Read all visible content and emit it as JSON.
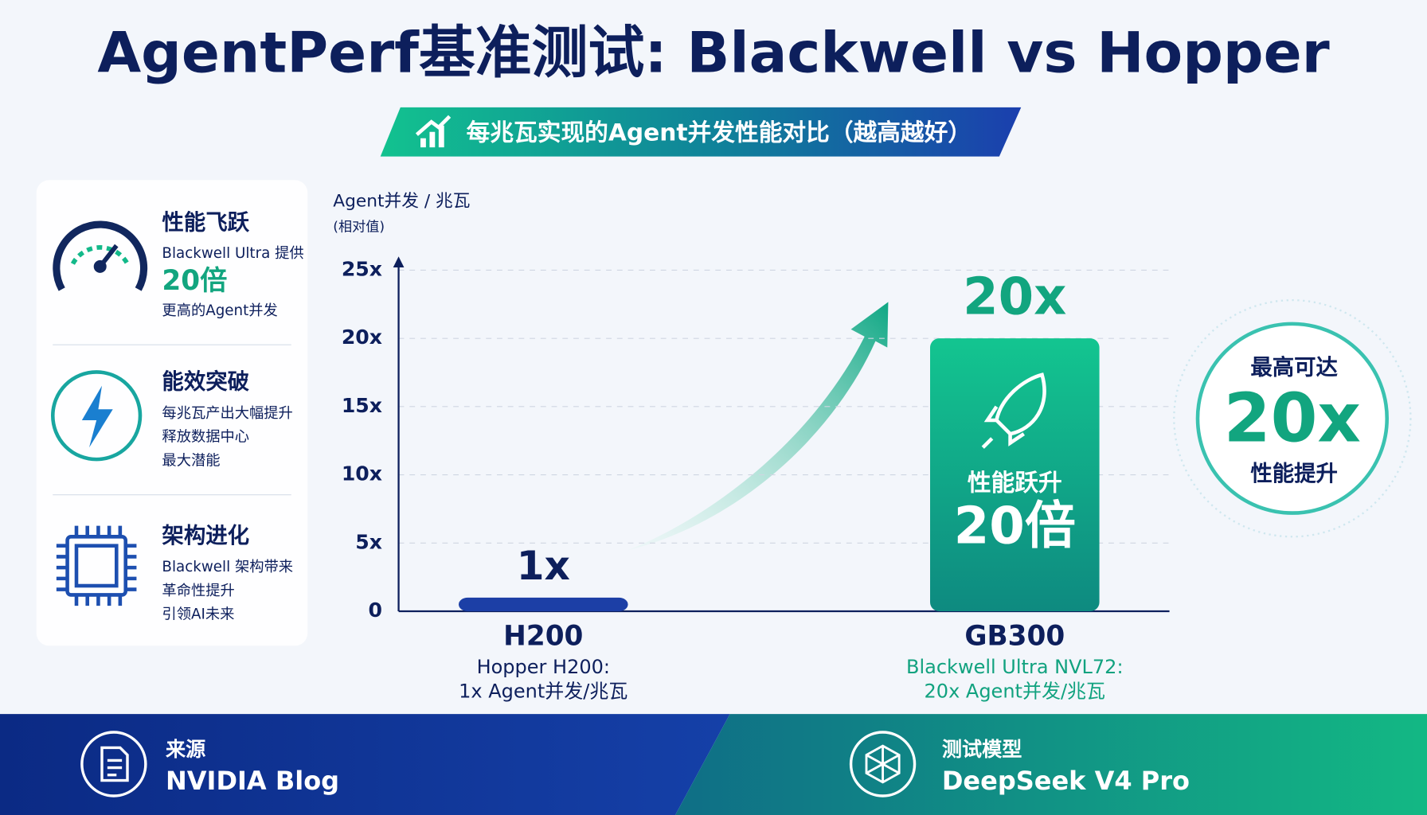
{
  "title": "AgentPerf基准测试: Blackwell vs Hopper",
  "subtitle": "每兆瓦实现的Agent并发性能对比（越高越好）",
  "sidebar": [
    {
      "title": "性能飞跃",
      "lines": [
        "Blackwell Ultra 提供",
        "20倍",
        "更高的Agent并发"
      ]
    },
    {
      "title": "能效突破",
      "lines": [
        "每兆瓦产出大幅提升",
        "释放数据中心",
        "最大潜能"
      ]
    },
    {
      "title": "架构进化",
      "lines": [
        "Blackwell 架构带来",
        "革命性提升",
        "引领AI未来"
      ]
    }
  ],
  "chart_data": {
    "type": "bar",
    "y_label": "Agent并发 / 兆瓦",
    "y_label_note": "(相对值)",
    "categories": [
      "H200",
      "GB300"
    ],
    "values": [
      1,
      20
    ],
    "value_labels": [
      "1x",
      "20x"
    ],
    "colors": [
      "#1c3fa6",
      "#13c590"
    ],
    "category_notes": [
      [
        "Hopper H200:",
        "1x Agent并发/兆瓦"
      ],
      [
        "Blackwell Ultra NVL72:",
        "20x Agent并发/兆瓦"
      ]
    ],
    "bar_annotation": [
      "性能跃升",
      "20倍"
    ],
    "ylim": [
      0,
      25
    ],
    "yticks": [
      0,
      {
        "value": 5,
        "label": "5x"
      },
      {
        "value": 10,
        "label": "10x"
      },
      {
        "value": 15,
        "label": "15x"
      },
      {
        "value": 20,
        "label": "20x"
      },
      {
        "value": 25,
        "label": "25x"
      }
    ],
    "grid": true
  },
  "badge": [
    "最高可达",
    "20x",
    "性能提升"
  ],
  "footer": [
    {
      "label": "来源",
      "value": "NVIDIA Blog"
    },
    {
      "label": "测试模型",
      "value": "DeepSeek V4 Pro"
    }
  ]
}
